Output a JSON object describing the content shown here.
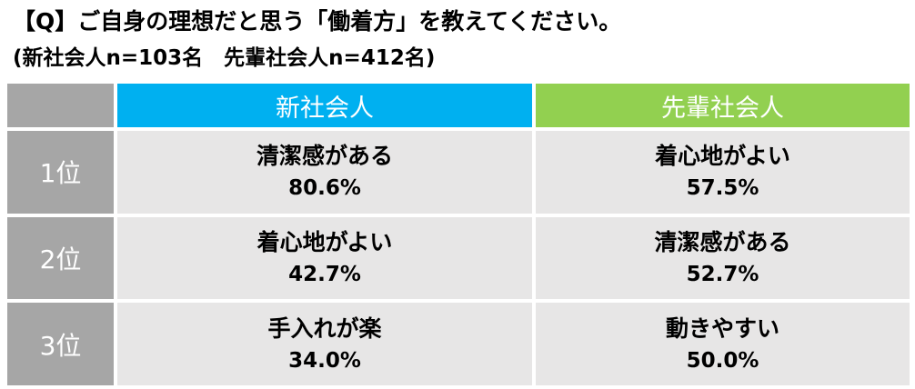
{
  "header": {
    "title": "【Q】ご自身の理想だと思う「働着方」を教えてください。",
    "subtitle": "(新社会人n=103名　先輩社会人n=412名)"
  },
  "table": {
    "columns": [
      "新社会人",
      "先輩社会人"
    ],
    "rows": [
      {
        "rank": "1位",
        "cells": [
          {
            "item": "清潔感がある",
            "value": "80.6%"
          },
          {
            "item": "着心地がよい",
            "value": "57.5%"
          }
        ]
      },
      {
        "rank": "2位",
        "cells": [
          {
            "item": "着心地がよい",
            "value": "42.7%"
          },
          {
            "item": "清潔感がある",
            "value": "52.7%"
          }
        ]
      },
      {
        "rank": "3位",
        "cells": [
          {
            "item": "手入れが楽",
            "value": "34.0%"
          },
          {
            "item": "動きやすい",
            "value": "50.0%"
          }
        ]
      }
    ]
  }
}
